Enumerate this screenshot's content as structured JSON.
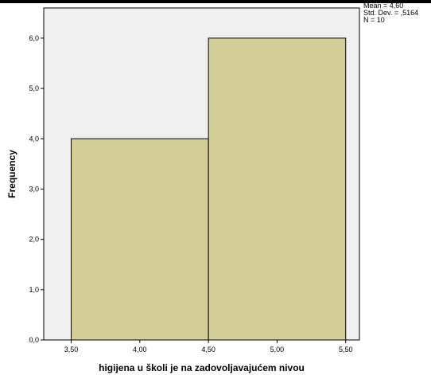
{
  "chart_data": {
    "type": "bar",
    "subtype": "histogram",
    "bins": [
      {
        "start": 3.5,
        "end": 4.5,
        "frequency": 4
      },
      {
        "start": 4.5,
        "end": 5.5,
        "frequency": 6
      }
    ],
    "xlabel": "higijena u školi je na zadovoljavajućem nivou",
    "ylabel": "Frequency",
    "x_ticks": [
      "3,50",
      "4,00",
      "4,50",
      "5,00",
      "5,50"
    ],
    "x_tick_values": [
      3.5,
      4.0,
      4.5,
      5.0,
      5.5
    ],
    "y_ticks": [
      "0,0",
      "1,0",
      "2,0",
      "3,0",
      "4,0",
      "5,0",
      "6,0"
    ],
    "y_tick_values": [
      0,
      1,
      2,
      3,
      4,
      5,
      6
    ],
    "xlim": [
      3.3,
      5.6
    ],
    "ylim": [
      0,
      6.6
    ],
    "grid": false,
    "stats": {
      "mean": "Mean = 4,60",
      "std_dev": "Std. Dev. = ,5164",
      "n": "N = 10"
    },
    "colors": {
      "bar_fill": "#d3ce98",
      "bar_stroke": "#000000",
      "plot_background": "#f0f0f0"
    }
  }
}
